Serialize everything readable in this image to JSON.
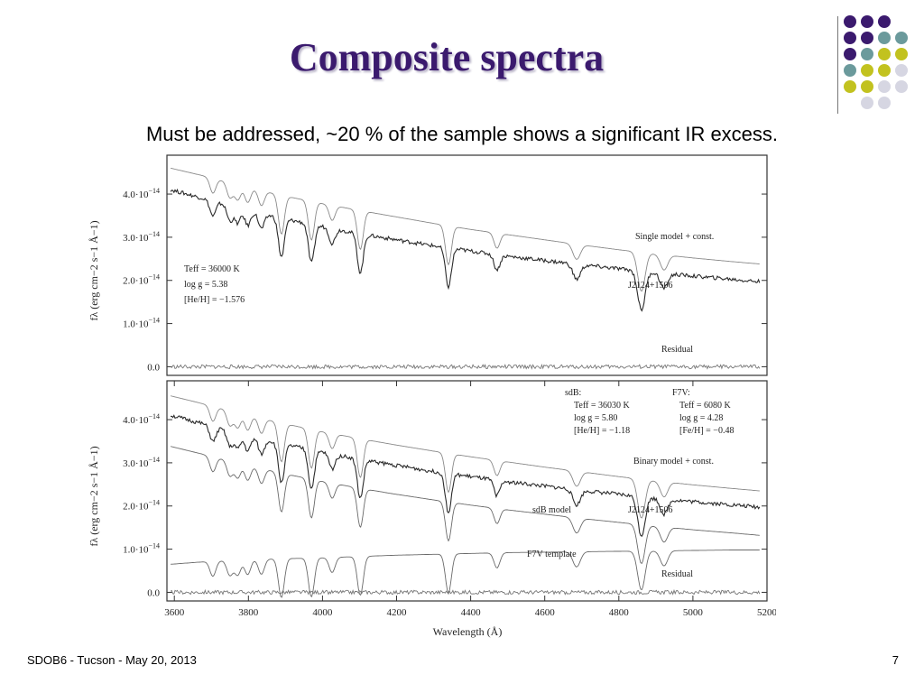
{
  "slide": {
    "title": "Composite spectra",
    "subtitle": "Must be addressed, ~20 % of the sample shows a significant IR excess.",
    "footer_left": "SDOB6 - Tucson - May 20, 2013",
    "page_number": "7",
    "accent_colors": [
      "#3b1a6e",
      "#6b9a9c",
      "#c2c21f",
      "#d6d6e2"
    ]
  },
  "chart_data": [
    {
      "type": "line",
      "xlabel": "Wavelength (Å)",
      "ylabel": "fλ (erg cm−2 s−1 Å−1)",
      "xlim": [
        3580,
        5200
      ],
      "ylim": [
        -0.2,
        4.9
      ],
      "yticks": [
        {
          "value": 4.0,
          "mantissa": "4.0·10",
          "exp": "−14"
        },
        {
          "value": 3.0,
          "mantissa": "3.0·10",
          "exp": "−14"
        },
        {
          "value": 2.0,
          "mantissa": "2.0·10",
          "exp": "−14"
        },
        {
          "value": 1.0,
          "mantissa": "1.0·10",
          "exp": "−14"
        },
        {
          "value": 0.0,
          "mantissa": "0.0",
          "exp": ""
        }
      ],
      "series": [
        {
          "name": "Single model + const.",
          "color": "#8a8a8a",
          "points": [
            [
              3590,
              4.6
            ],
            [
              3700,
              4.38
            ],
            [
              3800,
              4.15
            ],
            [
              3900,
              3.95
            ],
            [
              4000,
              3.78
            ],
            [
              4100,
              3.62
            ],
            [
              4200,
              3.47
            ],
            [
              4300,
              3.32
            ],
            [
              4400,
              3.18
            ],
            [
              4500,
              3.06
            ],
            [
              4600,
              2.94
            ],
            [
              4700,
              2.82
            ],
            [
              4800,
              2.71
            ],
            [
              4900,
              2.61
            ],
            [
              5000,
              2.52
            ],
            [
              5100,
              2.44
            ],
            [
              5180,
              2.38
            ]
          ]
        },
        {
          "name": "J2124+1506",
          "color": "#2a2a2a",
          "points": [
            [
              3590,
              4.1
            ],
            [
              3700,
              3.85
            ],
            [
              3800,
              3.62
            ],
            [
              3900,
              3.42
            ],
            [
              4000,
              3.25
            ],
            [
              4100,
              3.08
            ],
            [
              4200,
              2.94
            ],
            [
              4300,
              2.8
            ],
            [
              4400,
              2.68
            ],
            [
              4500,
              2.56
            ],
            [
              4600,
              2.46
            ],
            [
              4700,
              2.36
            ],
            [
              4800,
              2.27
            ],
            [
              4900,
              2.18
            ],
            [
              5000,
              2.1
            ],
            [
              5100,
              2.03
            ],
            [
              5180,
              1.97
            ]
          ]
        },
        {
          "name": "Residual",
          "color": "#777777",
          "points": [
            [
              3590,
              0.0
            ],
            [
              5180,
              0.0
            ]
          ]
        }
      ],
      "annotations": [
        {
          "text": "Teff = 36000 K"
        },
        {
          "text": "log g = 5.38"
        },
        {
          "text": "[He/H] = −1.576"
        }
      ]
    },
    {
      "type": "line",
      "xlabel": "Wavelength (Å)",
      "ylabel": "fλ (erg cm−2 s−1 Å−1)",
      "xlim": [
        3580,
        5200
      ],
      "xticks": [
        3600,
        3800,
        4000,
        4200,
        4400,
        4600,
        4800,
        5000,
        5200
      ],
      "ylim": [
        -0.2,
        4.9
      ],
      "series": [
        {
          "name": "Binary model + const.",
          "color": "#8a8a8a",
          "points": [
            [
              3590,
              4.55
            ],
            [
              3700,
              4.32
            ],
            [
              3800,
              4.1
            ],
            [
              3900,
              3.9
            ],
            [
              4000,
              3.72
            ],
            [
              4100,
              3.56
            ],
            [
              4200,
              3.41
            ],
            [
              4300,
              3.27
            ],
            [
              4400,
              3.14
            ],
            [
              4500,
              3.02
            ],
            [
              4600,
              2.9
            ],
            [
              4700,
              2.79
            ],
            [
              4800,
              2.68
            ],
            [
              4900,
              2.58
            ],
            [
              5000,
              2.49
            ],
            [
              5100,
              2.41
            ],
            [
              5180,
              2.35
            ]
          ]
        },
        {
          "name": "J2124+1506",
          "color": "#2a2a2a",
          "points": [
            [
              3590,
              4.1
            ],
            [
              3700,
              3.85
            ],
            [
              3800,
              3.62
            ],
            [
              3900,
              3.42
            ],
            [
              4000,
              3.25
            ],
            [
              4100,
              3.08
            ],
            [
              4200,
              2.94
            ],
            [
              4300,
              2.8
            ],
            [
              4400,
              2.68
            ],
            [
              4500,
              2.56
            ],
            [
              4600,
              2.46
            ],
            [
              4700,
              2.36
            ],
            [
              4800,
              2.27
            ],
            [
              4900,
              2.18
            ],
            [
              5000,
              2.1
            ],
            [
              5100,
              2.03
            ],
            [
              5180,
              1.97
            ]
          ]
        },
        {
          "name": "sdB model",
          "color": "#6a6a6a",
          "points": [
            [
              3590,
              3.38
            ],
            [
              3700,
              3.15
            ],
            [
              3800,
              2.94
            ],
            [
              3900,
              2.74
            ],
            [
              4000,
              2.57
            ],
            [
              4100,
              2.41
            ],
            [
              4200,
              2.27
            ],
            [
              4300,
              2.14
            ],
            [
              4400,
              2.02
            ],
            [
              4500,
              1.91
            ],
            [
              4600,
              1.81
            ],
            [
              4700,
              1.71
            ],
            [
              4800,
              1.62
            ],
            [
              4900,
              1.53
            ],
            [
              5000,
              1.45
            ],
            [
              5100,
              1.38
            ],
            [
              5180,
              1.32
            ]
          ]
        },
        {
          "name": "F7V template",
          "color": "#6a6a6a",
          "points": [
            [
              3590,
              0.65
            ],
            [
              3700,
              0.72
            ],
            [
              3800,
              0.76
            ],
            [
              3900,
              0.78
            ],
            [
              4000,
              0.8
            ],
            [
              4100,
              0.83
            ],
            [
              4200,
              0.86
            ],
            [
              4300,
              0.88
            ],
            [
              4400,
              0.9
            ],
            [
              4500,
              0.92
            ],
            [
              4600,
              0.93
            ],
            [
              4700,
              0.94
            ],
            [
              4800,
              0.95
            ],
            [
              4900,
              0.96
            ],
            [
              5000,
              0.97
            ],
            [
              5100,
              0.98
            ],
            [
              5180,
              0.98
            ]
          ]
        },
        {
          "name": "Residual",
          "color": "#777777",
          "points": [
            [
              3590,
              0.0
            ],
            [
              5180,
              0.0
            ]
          ]
        }
      ],
      "annotations": [
        {
          "text": "sdB:"
        },
        {
          "text": "Teff = 36030 K"
        },
        {
          "text": "log g = 5.80"
        },
        {
          "text": "[He/H] = −1.18"
        },
        {
          "text": "F7V:"
        },
        {
          "text": "Teff = 6080 K"
        },
        {
          "text": "log g = 4.28"
        },
        {
          "text": "[Fe/H] = −0.48"
        }
      ]
    }
  ]
}
